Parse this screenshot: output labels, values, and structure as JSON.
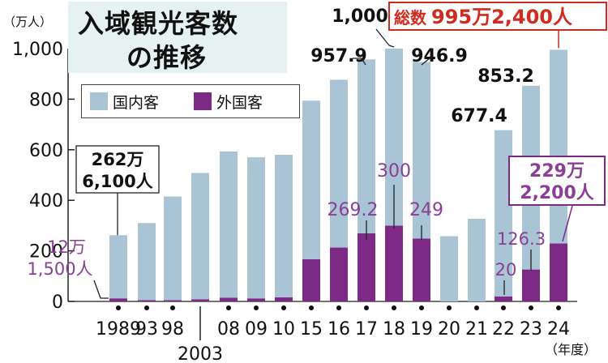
{
  "title": {
    "line1": "入域観光客数",
    "line2": "の推移"
  },
  "y_unit": "（万人）",
  "x_unit": "（年度）",
  "legend": [
    {
      "label": "国内客",
      "color": "#a9c4d4"
    },
    {
      "label": "外国客",
      "color": "#7c2a86"
    }
  ],
  "colors": {
    "domestic": "#a9c4d4",
    "foreign": "#7c2a86",
    "foreign_text": "#8a3e96",
    "highlight": "#d12a1f"
  },
  "chart_data": {
    "type": "bar",
    "stacked": true,
    "categories": [
      "1989",
      "93",
      "98",
      "2003",
      "08",
      "09",
      "10",
      "15",
      "16",
      "17",
      "18",
      "19",
      "20",
      "21",
      "22",
      "23",
      "24"
    ],
    "series": [
      {
        "name": "国内客",
        "values": [
          249.9,
          305,
          410,
          500,
          578,
          558,
          564,
          627,
          664,
          688,
          700,
          697.9,
          258,
          327,
          657.4,
          727,
          766.2
        ]
      },
      {
        "name": "外国客",
        "values": [
          12.15,
          5,
          5,
          8,
          15,
          12,
          16,
          167,
          213,
          269.2,
          300,
          249,
          0,
          0,
          20,
          126.3,
          229.22
        ]
      }
    ],
    "ylim": [
      0,
      1000
    ],
    "yticks": [
      0,
      200,
      400,
      600,
      800,
      1000
    ],
    "ytick_labels": [
      "0",
      "200",
      "400",
      "600",
      "800",
      "1,000"
    ],
    "grid": false,
    "legend_position": "top-left",
    "annotations": {
      "total_1989": [
        "262万",
        "6,100人"
      ],
      "foreign_1989": [
        "12万",
        "1,500人"
      ],
      "total_17": "957.9",
      "total_18": "1,000",
      "total_19": "946.9",
      "total_22": "677.4",
      "total_23": "853.2",
      "total_24": [
        "総数",
        "995万2,400人"
      ],
      "foreign_17": "269.2",
      "foreign_18": "300",
      "foreign_19": "249",
      "foreign_22": "20",
      "foreign_23": "126.3",
      "foreign_24": [
        "229万",
        "2,200人"
      ]
    }
  }
}
